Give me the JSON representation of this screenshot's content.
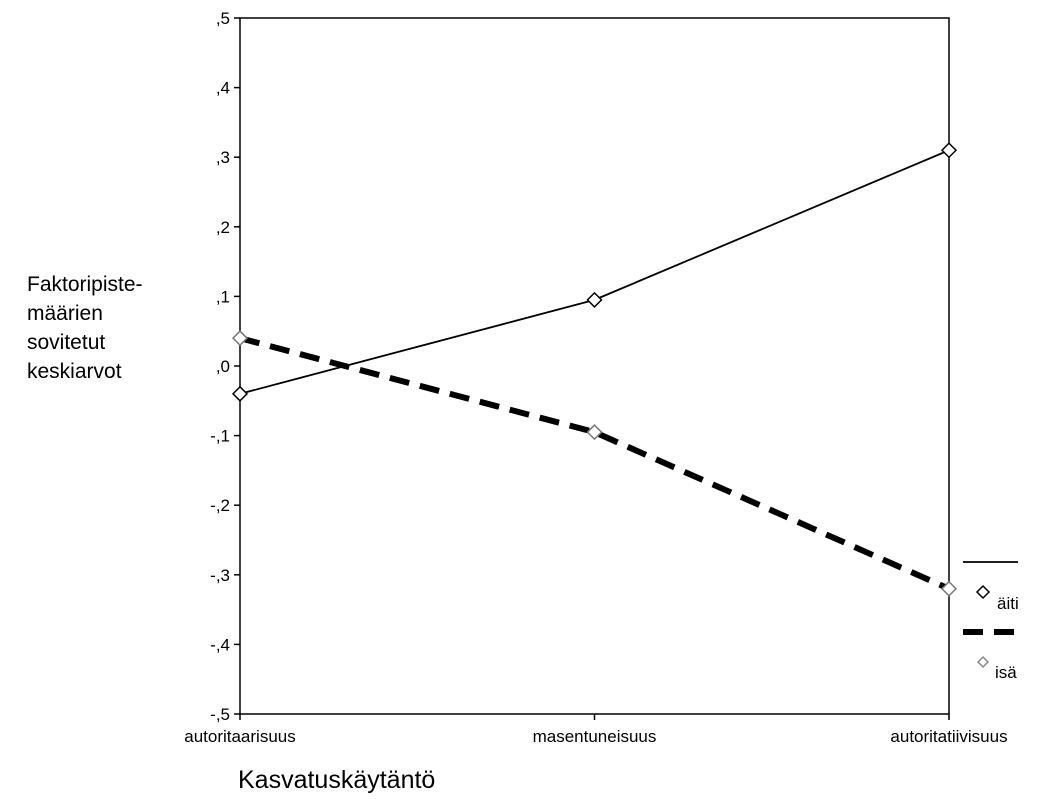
{
  "chart_data": {
    "type": "line",
    "title": "",
    "xlabel": "Kasvatuskäytäntö",
    "ylabel_lines": [
      "Faktoripiste-",
      "määrien",
      "sovitetut",
      "keskiarvot"
    ],
    "categories": [
      "autoritaarisuus",
      "masentuneisuus",
      "autoritatiivisuus"
    ],
    "ylim": [
      -0.5,
      0.5
    ],
    "yticks": [
      0.5,
      0.4,
      0.3,
      0.2,
      0.1,
      0.0,
      -0.1,
      -0.2,
      -0.3,
      -0.4,
      -0.5
    ],
    "ytick_labels": [
      ",5",
      ",4",
      ",3",
      ",2",
      ",1",
      ",0",
      "-,1",
      "-,2",
      "-,3",
      "-,4",
      "-,5"
    ],
    "grid": false,
    "legend_position": "right-bottom",
    "series": [
      {
        "name": "äiti",
        "values": [
          -0.04,
          0.095,
          0.31
        ],
        "line_style": "solid",
        "color": "#000000"
      },
      {
        "name": "isä",
        "values": [
          0.04,
          -0.095,
          -0.32
        ],
        "line_style": "dashed",
        "color": "#000000"
      }
    ]
  }
}
